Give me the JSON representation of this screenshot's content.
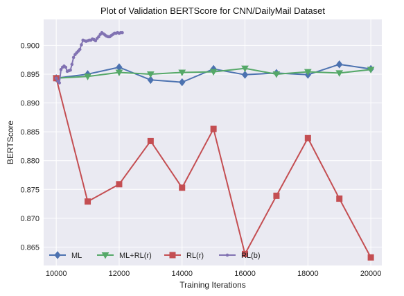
{
  "chart_data": {
    "type": "line",
    "title": "Plot of Validation BERTScore for CNN/DailyMail Dataset",
    "xlabel": "Training Iterations",
    "ylabel": "BERTScore",
    "xlim": [
      9600,
      20350
    ],
    "ylim": [
      0.8618,
      0.9045
    ],
    "xticks": [
      10000,
      12000,
      14000,
      16000,
      18000,
      20000
    ],
    "xtick_labels": [
      "10000",
      "12000",
      "14000",
      "16000",
      "18000",
      "20000"
    ],
    "yticks": [
      0.865,
      0.87,
      0.875,
      0.88,
      0.885,
      0.89,
      0.895,
      0.9
    ],
    "ytick_labels": [
      "0.865",
      "0.870",
      "0.875",
      "0.880",
      "0.885",
      "0.890",
      "0.895",
      "0.900"
    ],
    "grid": true,
    "legend_position": "bottom-left",
    "series": [
      {
        "name": "ML",
        "color": "#4c72b0",
        "marker": "diamond",
        "x": [
          10000,
          11000,
          12000,
          13000,
          14000,
          15000,
          16000,
          17000,
          18000,
          19000,
          20000
        ],
        "y": [
          0.8943,
          0.895,
          0.8962,
          0.894,
          0.8936,
          0.8959,
          0.8949,
          0.8952,
          0.8949,
          0.8967,
          0.8959
        ]
      },
      {
        "name": "ML+RL(r)",
        "color": "#55a868",
        "marker": "triangle-down",
        "x": [
          10000,
          11000,
          12000,
          13000,
          14000,
          15000,
          16000,
          17000,
          18000,
          19000,
          20000
        ],
        "y": [
          0.8943,
          0.8946,
          0.8953,
          0.895,
          0.8953,
          0.8954,
          0.896,
          0.895,
          0.8954,
          0.8952,
          0.8958
        ]
      },
      {
        "name": "RL(r)",
        "color": "#c44e52",
        "marker": "square",
        "x": [
          10000,
          11000,
          12000,
          13000,
          14000,
          15000,
          16000,
          17000,
          18000,
          19000,
          20000
        ],
        "y": [
          0.8943,
          0.8729,
          0.8759,
          0.8834,
          0.8753,
          0.8855,
          0.8638,
          0.8739,
          0.8839,
          0.8734,
          0.8632
        ]
      },
      {
        "name": "RL(b)",
        "color": "#8172b2",
        "marker": "point",
        "x": [
          10000,
          10050,
          10100,
          10150,
          10200,
          10250,
          10300,
          10350,
          10400,
          10450,
          10500,
          10550,
          10600,
          10650,
          10700,
          10750,
          10800,
          10850,
          10900,
          10950,
          11000,
          11050,
          11100,
          11150,
          11200,
          11250,
          11300,
          11350,
          11400,
          11450,
          11500,
          11550,
          11600,
          11650,
          11700,
          11750,
          11800,
          11850,
          11900,
          11950,
          12000,
          12050,
          12100
        ],
        "y": [
          0.8943,
          0.8938,
          0.8935,
          0.8958,
          0.8962,
          0.8964,
          0.8962,
          0.8955,
          0.8956,
          0.8957,
          0.8967,
          0.8979,
          0.8984,
          0.8987,
          0.899,
          0.8993,
          0.9001,
          0.9009,
          0.9008,
          0.9007,
          0.9008,
          0.9009,
          0.9009,
          0.9011,
          0.901,
          0.9008,
          0.9012,
          0.9015,
          0.9019,
          0.9022,
          0.902,
          0.9018,
          0.9016,
          0.9015,
          0.9015,
          0.9017,
          0.9019,
          0.9021,
          0.9021,
          0.9022,
          0.9021,
          0.9022,
          0.9022
        ]
      }
    ]
  }
}
